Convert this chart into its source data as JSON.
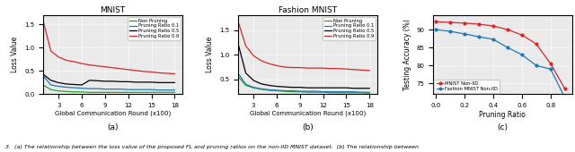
{
  "mnist_title": "MNIST",
  "fashion_title": "Fashion MNIST",
  "panel_c_xlabel": "Pruning Ratio",
  "panel_c_ylabel": "Testing Accuracy (%)",
  "loss_xlabel": "Global Communication Round (x100)",
  "loss_ylabel": "Loss Value",
  "legend_labels": [
    "Non Pruning",
    "Pruning Ratio 0.1",
    "Pruning Ratio 0.5",
    "Pruning Ratio 0.9"
  ],
  "legend_colors": [
    "#2ca02c",
    "#1f77b4",
    "#000000",
    "#d62728"
  ],
  "panel_c_legend_labels": [
    "MNIST Non-IID",
    "Fashion MNIST Non-IID"
  ],
  "panel_c_legend_colors": [
    "#d62728",
    "#1f77b4"
  ],
  "subplot_labels": [
    "(a)",
    "(b)",
    "(c)"
  ],
  "caption": "3.  (a) The relationship between the loss value of the proposed FL and pruning ratios on the non-IID MNIST dataset.  (b) The relationship between",
  "mnist_rounds": [
    1,
    2,
    3,
    4,
    5,
    6,
    7,
    8,
    9,
    10,
    11,
    12,
    13,
    14,
    15,
    16,
    17,
    18
  ],
  "mnist_non_pruning": [
    0.2,
    0.1,
    0.07,
    0.06,
    0.05,
    0.05,
    0.04,
    0.04,
    0.04,
    0.04,
    0.04,
    0.04,
    0.04,
    0.04,
    0.04,
    0.04,
    0.04,
    0.04
  ],
  "mnist_ratio01": [
    0.4,
    0.2,
    0.17,
    0.15,
    0.14,
    0.13,
    0.12,
    0.12,
    0.11,
    0.11,
    0.11,
    0.1,
    0.1,
    0.1,
    0.1,
    0.09,
    0.09,
    0.09
  ],
  "mnist_ratio05": [
    0.43,
    0.3,
    0.25,
    0.22,
    0.21,
    0.2,
    0.3,
    0.29,
    0.28,
    0.28,
    0.27,
    0.27,
    0.26,
    0.26,
    0.26,
    0.25,
    0.25,
    0.25
  ],
  "mnist_ratio09": [
    1.58,
    0.93,
    0.8,
    0.73,
    0.7,
    0.66,
    0.63,
    0.61,
    0.59,
    0.57,
    0.55,
    0.53,
    0.51,
    0.49,
    0.48,
    0.46,
    0.45,
    0.44
  ],
  "fashion_rounds": [
    1,
    2,
    3,
    4,
    5,
    6,
    7,
    8,
    9,
    10,
    11,
    12,
    13,
    14,
    15,
    16,
    17,
    18
  ],
  "fashion_non_pruning": [
    0.56,
    0.38,
    0.33,
    0.3,
    0.28,
    0.27,
    0.26,
    0.25,
    0.25,
    0.24,
    0.24,
    0.24,
    0.23,
    0.23,
    0.23,
    0.23,
    0.23,
    0.22
  ],
  "fashion_ratio01": [
    0.63,
    0.4,
    0.34,
    0.31,
    0.29,
    0.28,
    0.27,
    0.27,
    0.26,
    0.26,
    0.26,
    0.25,
    0.25,
    0.25,
    0.25,
    0.25,
    0.24,
    0.24
  ],
  "fashion_ratio05": [
    1.23,
    0.63,
    0.48,
    0.41,
    0.38,
    0.36,
    0.35,
    0.34,
    0.34,
    0.33,
    0.33,
    0.33,
    0.33,
    0.33,
    0.33,
    0.32,
    0.32,
    0.32
  ],
  "fashion_ratio09": [
    1.68,
    1.18,
    0.98,
    0.88,
    0.82,
    0.78,
    0.75,
    0.74,
    0.74,
    0.73,
    0.73,
    0.73,
    0.72,
    0.72,
    0.71,
    0.7,
    0.69,
    0.68
  ],
  "pruning_ratios": [
    0.0,
    0.1,
    0.2,
    0.3,
    0.4,
    0.5,
    0.6,
    0.7,
    0.8,
    0.9
  ],
  "mnist_accuracy": [
    92.2,
    92.0,
    91.8,
    91.5,
    91.0,
    90.0,
    88.5,
    86.0,
    80.5,
    73.5
  ],
  "fashion_accuracy": [
    90.0,
    89.5,
    88.8,
    88.0,
    87.3,
    85.0,
    83.0,
    80.0,
    79.0,
    71.0
  ],
  "mnist_ylim": [
    0.0,
    1.7
  ],
  "fashion_ylim": [
    0.2,
    1.8
  ],
  "accuracy_ylim": [
    72,
    94
  ],
  "accuracy_yticks": [
    75,
    80,
    85,
    90
  ],
  "loss_xticks": [
    3,
    6,
    9,
    12,
    15,
    18
  ],
  "accuracy_xticks": [
    0.0,
    0.2,
    0.4,
    0.6,
    0.8
  ],
  "background_color": "#eaeaea",
  "grid_color": "#ffffff",
  "linewidth": 0.9
}
